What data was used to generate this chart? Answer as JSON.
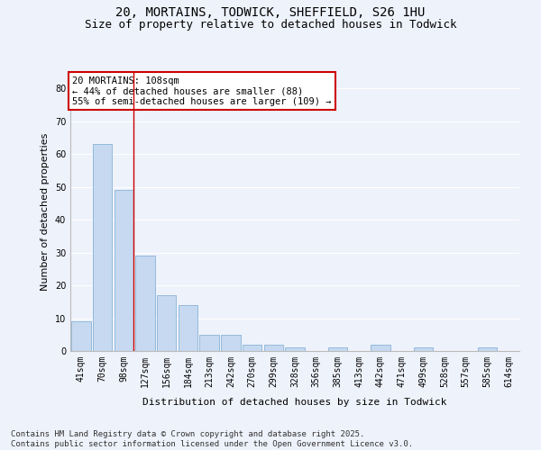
{
  "title_line1": "20, MORTAINS, TODWICK, SHEFFIELD, S26 1HU",
  "title_line2": "Size of property relative to detached houses in Todwick",
  "xlabel": "Distribution of detached houses by size in Todwick",
  "ylabel": "Number of detached properties",
  "categories": [
    "41sqm",
    "70sqm",
    "98sqm",
    "127sqm",
    "156sqm",
    "184sqm",
    "213sqm",
    "242sqm",
    "270sqm",
    "299sqm",
    "328sqm",
    "356sqm",
    "385sqm",
    "413sqm",
    "442sqm",
    "471sqm",
    "499sqm",
    "528sqm",
    "557sqm",
    "585sqm",
    "614sqm"
  ],
  "values": [
    9,
    63,
    49,
    29,
    17,
    14,
    5,
    5,
    2,
    2,
    1,
    0,
    1,
    0,
    2,
    0,
    1,
    0,
    0,
    1,
    0
  ],
  "bar_color": "#c6d9f0",
  "bar_edge_color": "#7aaad0",
  "background_color": "#eef2fb",
  "grid_color": "#ffffff",
  "vline_x_index": 2,
  "annotation_text": "20 MORTAINS: 108sqm\n← 44% of detached houses are smaller (88)\n55% of semi-detached houses are larger (109) →",
  "annotation_box_color": "#ffffff",
  "annotation_box_edge_color": "#cc0000",
  "ylim": [
    0,
    85
  ],
  "yticks": [
    0,
    10,
    20,
    30,
    40,
    50,
    60,
    70,
    80
  ],
  "footer_line1": "Contains HM Land Registry data © Crown copyright and database right 2025.",
  "footer_line2": "Contains public sector information licensed under the Open Government Licence v3.0.",
  "vline_color": "#cc0000",
  "title_fontsize": 10,
  "subtitle_fontsize": 9,
  "axis_label_fontsize": 8,
  "tick_fontsize": 7,
  "annotation_fontsize": 7.5,
  "footer_fontsize": 6.5
}
